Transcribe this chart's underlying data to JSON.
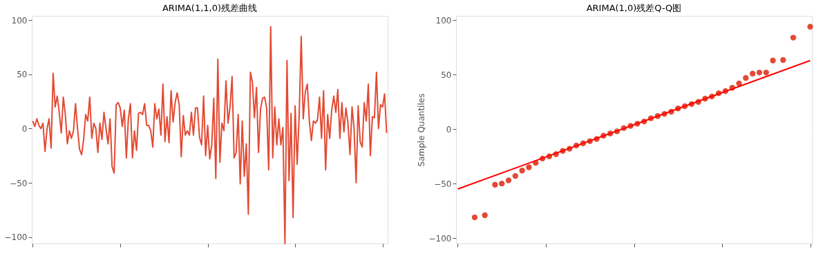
{
  "chart_data": [
    {
      "type": "line",
      "title": "ARIMA(1,1,0)残差曲线",
      "color": "#e24a33",
      "ylim": [
        -106,
        104
      ],
      "yticks": [
        -100,
        -50,
        0,
        50,
        100
      ],
      "grid": true,
      "tick_labels": "y",
      "categories": [
        null,
        null,
        null,
        null,
        null,
        null,
        null,
        null,
        null,
        null,
        null,
        null,
        null,
        null,
        null,
        null,
        null,
        null,
        null,
        null,
        null,
        null,
        null,
        null,
        null,
        null,
        null,
        null,
        null,
        null,
        null,
        null,
        null,
        null,
        null,
        null,
        null,
        null,
        null,
        null,
        null,
        null,
        null,
        null,
        null,
        null,
        null,
        null,
        null,
        null,
        null,
        null,
        null,
        null,
        null,
        null,
        null,
        null,
        null,
        null,
        null,
        null,
        null,
        null,
        null,
        null,
        null,
        null,
        null,
        null,
        null,
        null,
        null,
        null,
        null,
        null,
        null,
        null,
        null,
        null,
        null,
        null,
        null,
        null,
        null,
        null,
        null,
        null,
        null,
        null,
        null,
        null,
        null,
        null,
        null,
        null,
        null,
        null,
        null,
        null,
        null,
        null,
        null,
        null,
        null,
        null,
        null,
        null,
        null,
        null,
        null,
        null,
        null,
        null,
        null,
        null,
        null,
        null,
        null,
        null,
        null,
        null,
        null,
        null,
        null,
        null,
        null,
        null,
        null,
        null,
        null,
        null,
        null,
        null,
        null,
        null,
        null,
        null,
        null,
        null,
        null,
        null,
        null,
        null,
        null,
        null,
        null,
        null,
        null,
        null,
        null,
        null,
        null,
        null,
        null,
        null,
        null,
        null,
        null,
        null,
        null,
        null,
        null,
        null,
        null,
        null,
        null,
        null,
        null,
        null,
        null,
        null,
        null,
        null,
        null
      ],
      "values": [
        7,
        2,
        9,
        3,
        0,
        5,
        -21,
        0,
        9,
        -18,
        51,
        20,
        30,
        15,
        -4,
        29,
        13,
        -14,
        -2,
        -9,
        -2,
        23,
        0,
        -19,
        -24,
        -10,
        13,
        7,
        29,
        -9,
        5,
        0,
        -22,
        5,
        -10,
        15,
        0,
        -14,
        9,
        -35,
        -41,
        22,
        24,
        19,
        2,
        17,
        -27,
        9,
        23,
        -27,
        -2,
        -20,
        14,
        15,
        13,
        23,
        3,
        3,
        -2,
        -17,
        23,
        9,
        18,
        -6,
        41,
        -12,
        11,
        -13,
        35,
        6,
        24,
        33,
        22,
        -26,
        12,
        -6,
        -2,
        -6,
        15,
        -6,
        19,
        19,
        -8,
        -15,
        30,
        -25,
        3,
        -28,
        -15,
        28,
        -46,
        64,
        -31,
        5,
        -2,
        44,
        5,
        20,
        48,
        -27,
        -22,
        13,
        -51,
        7,
        -44,
        -14,
        -79,
        52,
        43,
        10,
        38,
        -22,
        18,
        28,
        29,
        19,
        -38,
        94,
        -27,
        20,
        -15,
        9,
        -15,
        1,
        -106,
        63,
        -48,
        14,
        -82,
        21,
        -33,
        12,
        85,
        9,
        34,
        41,
        7,
        -11,
        7,
        5,
        8,
        29,
        -9,
        35,
        -38,
        13,
        -9,
        17,
        30,
        15,
        36,
        -9,
        24,
        -3,
        19,
        5,
        -24,
        20,
        0,
        -50,
        21,
        -12,
        -17,
        24,
        7,
        41,
        -25,
        11,
        10,
        52,
        0,
        22,
        20,
        32,
        -4
      ]
    },
    {
      "type": "scatter",
      "title": "ARIMA(1,0)残差Q-Q图",
      "ylabel": "Sample Quantiles",
      "ylim": [
        -105,
        104
      ],
      "yticks": [
        -100,
        -50,
        0,
        50,
        100
      ],
      "grid": true,
      "tick_labels": "y",
      "categories": [
        null,
        null,
        null,
        null,
        null,
        null,
        null,
        null,
        null,
        null,
        null,
        null,
        null,
        null,
        null,
        null,
        null,
        null,
        null,
        null,
        null,
        null,
        null,
        null,
        null,
        null,
        null,
        null,
        null,
        null,
        null,
        null,
        null,
        null,
        null,
        null,
        null,
        null,
        null,
        null,
        null,
        null,
        null,
        null,
        null,
        null,
        null,
        null,
        null,
        null,
        null,
        null,
        null,
        null,
        null,
        null,
        null,
        null,
        null,
        null,
        null,
        null,
        null,
        null,
        null,
        null,
        null,
        null,
        null,
        null,
        null,
        null,
        null,
        null,
        null,
        null,
        null,
        null,
        null,
        null,
        null,
        null,
        null,
        null,
        null,
        null,
        null,
        null,
        null,
        null,
        null,
        null,
        null,
        null,
        null,
        null,
        null,
        null,
        null,
        null,
        null,
        null,
        null,
        null,
        null
      ],
      "series": [
        {
          "type": "scatter",
          "marker": "circle",
          "color": "#e24a33",
          "values": [
            null,
            null,
            null,
            null,
            null,
            -81,
            null,
            null,
            -79,
            null,
            null,
            -51,
            null,
            -50,
            null,
            -47,
            null,
            -43,
            null,
            -38,
            null,
            -35,
            null,
            -31,
            null,
            -27,
            null,
            -25,
            null,
            -23,
            null,
            -20,
            null,
            -18,
            null,
            -15,
            null,
            -13,
            null,
            -11,
            null,
            -9,
            null,
            -6,
            null,
            -4,
            null,
            -2,
            null,
            1,
            null,
            3,
            null,
            5,
            null,
            7,
            null,
            10,
            null,
            12,
            null,
            14,
            null,
            16,
            null,
            19,
            null,
            21,
            null,
            23,
            null,
            25,
            null,
            28,
            null,
            30,
            null,
            33,
            null,
            35,
            null,
            38,
            null,
            42,
            null,
            47,
            null,
            51,
            null,
            52,
            null,
            52,
            null,
            63,
            null,
            null,
            63.5,
            null,
            null,
            84,
            null,
            null,
            null,
            null,
            94
          ]
        },
        {
          "type": "line",
          "color": "#ff0000",
          "values": [
            -55,
            null,
            null,
            null,
            null,
            null,
            null,
            null,
            null,
            null,
            null,
            null,
            null,
            null,
            null,
            null,
            null,
            null,
            null,
            null,
            null,
            null,
            null,
            null,
            null,
            null,
            null,
            null,
            null,
            null,
            null,
            null,
            null,
            null,
            null,
            null,
            null,
            null,
            null,
            null,
            null,
            null,
            null,
            null,
            null,
            null,
            null,
            null,
            null,
            null,
            null,
            null,
            null,
            null,
            null,
            null,
            null,
            null,
            null,
            null,
            null,
            null,
            null,
            null,
            null,
            null,
            null,
            null,
            null,
            null,
            null,
            null,
            null,
            null,
            null,
            null,
            null,
            null,
            null,
            null,
            null,
            null,
            null,
            null,
            null,
            null,
            null,
            null,
            null,
            null,
            null,
            null,
            null,
            null,
            null,
            null,
            null,
            null,
            null,
            null,
            null,
            null,
            null,
            null,
            63
          ]
        }
      ]
    }
  ]
}
